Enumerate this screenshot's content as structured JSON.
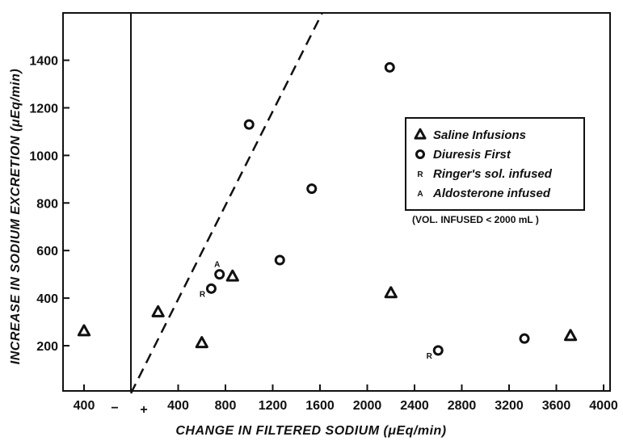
{
  "chart_data": {
    "type": "scatter",
    "title": "",
    "xlabel": "CHANGE IN FILTERED SODIUM (μEq/min)",
    "ylabel": "INCREASE IN SODIUM EXCRETION (μEq/min)",
    "ylim": [
      80,
      1600
    ],
    "y_ticks": [
      200,
      400,
      600,
      800,
      1000,
      1200,
      1400
    ],
    "x_tick_labels": [
      "400",
      "−",
      "+",
      "400",
      "800",
      "1200",
      "1600",
      "2000",
      "2400",
      "2800",
      "3200",
      "3600",
      "4000"
    ],
    "x_axis_note": "Origin at the vertical line; values to the left are negative changes, values to the right are positive changes.",
    "x_negative_range": [
      -500,
      0
    ],
    "x_positive_range": [
      0,
      4000
    ],
    "grid": false,
    "legend_position": "right",
    "legend": [
      {
        "symbol": "Δ",
        "marker": "open-triangle",
        "label": "Saline Infusions"
      },
      {
        "symbol": "o",
        "marker": "open-circle",
        "label": "Diuresis First"
      },
      {
        "symbol": "R",
        "marker": "R-letter",
        "label": "Ringer's sol. infused"
      },
      {
        "symbol": "A",
        "marker": "A-letter",
        "label": "Aldosterone infused"
      }
    ],
    "legend_note": "(VOL. INFUSED < 2000 mL )",
    "reference_line": {
      "style": "dashed",
      "points": [
        [
          0,
          0
        ],
        [
          1620,
          1600
        ]
      ]
    },
    "series": [
      {
        "name": "Saline Infusions",
        "marker": "triangle",
        "points": [
          {
            "x": -400,
            "y": 260
          },
          {
            "x": 230,
            "y": 340
          },
          {
            "x": 600,
            "y": 210
          },
          {
            "x": 860,
            "y": 490
          },
          {
            "x": 2200,
            "y": 420
          },
          {
            "x": 3720,
            "y": 240
          }
        ]
      },
      {
        "name": "Diuresis First",
        "marker": "circle",
        "points": [
          {
            "x": 680,
            "y": 440,
            "label": "R"
          },
          {
            "x": 750,
            "y": 500,
            "label": "A"
          },
          {
            "x": 1000,
            "y": 1130
          },
          {
            "x": 1260,
            "y": 560
          },
          {
            "x": 1530,
            "y": 860
          },
          {
            "x": 2190,
            "y": 1370
          },
          {
            "x": 2600,
            "y": 180,
            "label": "R"
          },
          {
            "x": 3330,
            "y": 230
          }
        ]
      }
    ]
  }
}
